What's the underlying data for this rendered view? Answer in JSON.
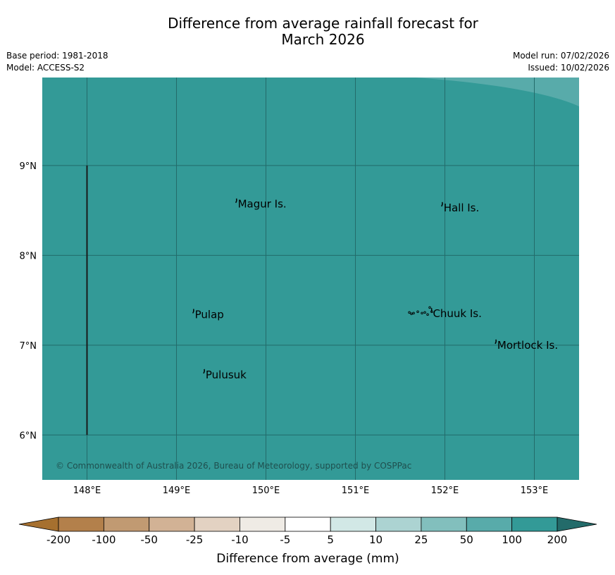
{
  "title": {
    "line1": "Difference from average rainfall forecast for",
    "line2": "March 2026"
  },
  "meta": {
    "base_period": "Base period: 1981-2018",
    "model": "Model: ACCESS-S2",
    "model_run": "Model run: 07/02/2026",
    "issued": "Issued: 10/02/2026"
  },
  "map": {
    "lon_range": [
      147.5,
      153.5
    ],
    "lat_range": [
      5.5,
      9.98
    ],
    "fill_color": "#339a97",
    "light_fill_color": "#58abaa",
    "grid_color": "#236b6a",
    "lon_ticks": [
      148,
      149,
      150,
      151,
      152,
      153
    ],
    "lon_labels": [
      "148°E",
      "149°E",
      "150°E",
      "151°E",
      "152°E",
      "153°E"
    ],
    "lat_ticks": [
      9,
      8,
      7,
      6
    ],
    "lat_labels": [
      "9°N",
      "8°N",
      "7°N",
      "6°N"
    ],
    "boundary_line": {
      "lon": 148,
      "lat_from": 6.0,
      "lat_to": 9.0
    },
    "places": [
      {
        "name": "Magur Is.",
        "lon": 149.67,
        "lat": 8.57
      },
      {
        "name": "Hall Is.",
        "lon": 151.97,
        "lat": 8.53
      },
      {
        "name": "Pulap",
        "lon": 149.19,
        "lat": 7.34
      },
      {
        "name": "Chuuk Is.",
        "lon": 151.85,
        "lat": 7.35
      },
      {
        "name": "Mortlock Is.",
        "lon": 152.57,
        "lat": 7.0
      },
      {
        "name": "Pulusuk",
        "lon": 149.31,
        "lat": 6.67
      }
    ],
    "copyright": "© Commonwealth of Australia 2026, Bureau of Meteorology, supported by COSPPac"
  },
  "colorbar": {
    "colors": [
      "#a6702f",
      "#b3804b",
      "#c19a72",
      "#d2b295",
      "#e3d2c2",
      "#efebe5",
      "#ffffff",
      "#d2e8e6",
      "#acd3d2",
      "#82bfbd",
      "#58abaa",
      "#339a97",
      "#236b6a"
    ],
    "tick_labels": [
      "-200",
      "-100",
      "-50",
      "-25",
      "-10",
      "-5",
      "5",
      "10",
      "25",
      "50",
      "100",
      "200"
    ],
    "label": "Difference from average (mm)"
  }
}
